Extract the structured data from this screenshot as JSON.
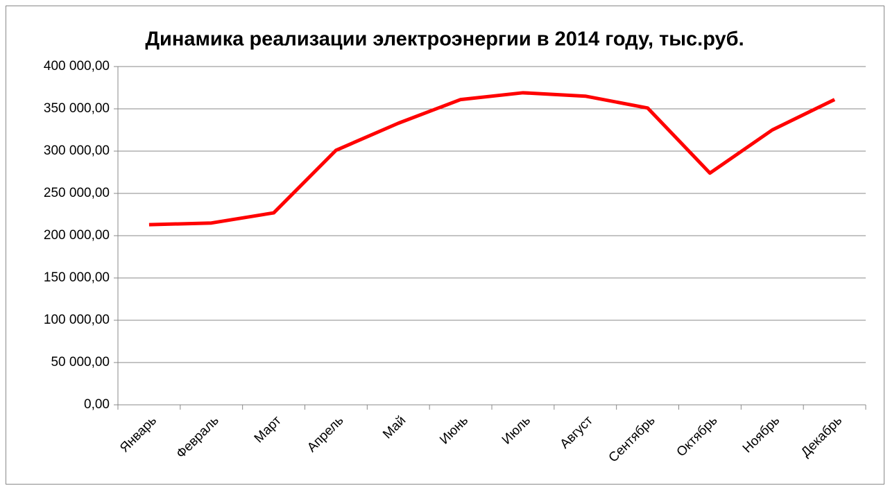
{
  "chart_data": {
    "type": "line",
    "title": "Динамика реализации электроэнергии в 2014 году, тыс.руб.",
    "categories": [
      "Январь",
      "Февраль",
      "Март",
      "Апрель",
      "Май",
      "Июнь",
      "Июль",
      "Август",
      "Сентябрь",
      "Октябрь",
      "Ноябрь",
      "Декабрь"
    ],
    "series": [
      {
        "color": "#ff0000",
        "values": [
          213000,
          215000,
          227000,
          301000,
          333000,
          361000,
          369000,
          365000,
          351000,
          274000,
          325000,
          361000
        ]
      }
    ],
    "ylim": [
      0,
      400000
    ],
    "yticks": [
      {
        "value": 0,
        "label": "0,00"
      },
      {
        "value": 50000,
        "label": "50 000,00"
      },
      {
        "value": 100000,
        "label": "100 000,00"
      },
      {
        "value": 150000,
        "label": "150 000,00"
      },
      {
        "value": 200000,
        "label": "200 000,00"
      },
      {
        "value": 250000,
        "label": "250 000,00"
      },
      {
        "value": 300000,
        "label": "300 000,00"
      },
      {
        "value": 350000,
        "label": "350 000,00"
      },
      {
        "value": 400000,
        "label": "400 000,00"
      }
    ],
    "grid": true
  }
}
